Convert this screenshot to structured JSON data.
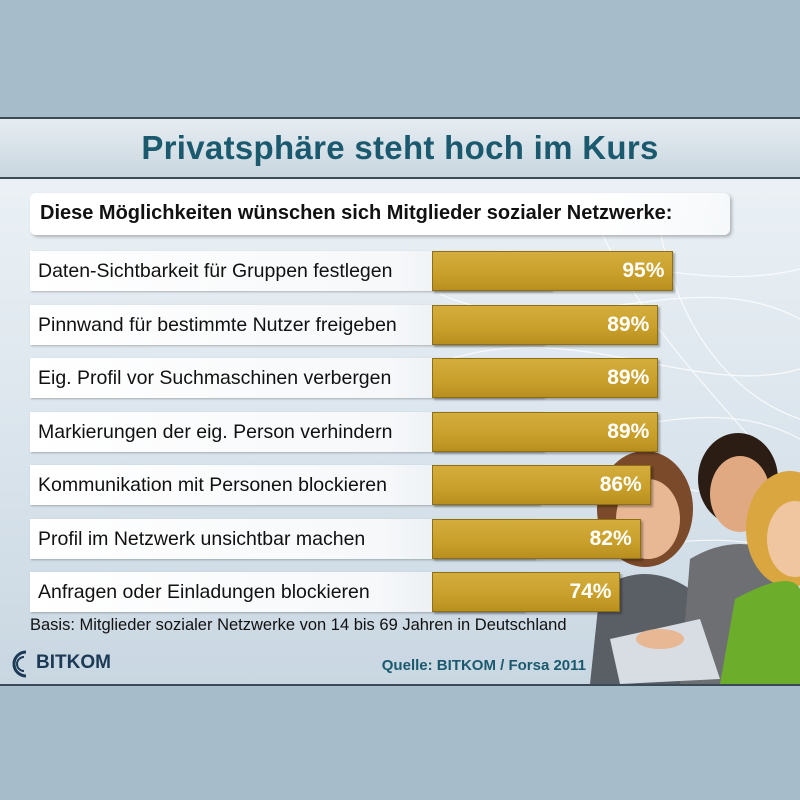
{
  "title": "Privatsphäre steht hoch im Kurs",
  "subtitle": "Diese Möglichkeiten wünschen sich Mitglieder sozialer Netzwerke:",
  "footnote": "Basis: Mitglieder sozialer Netzwerke von 14 bis 69 Jahren in Deutschland",
  "source": "Quelle: BITKOM / Forsa 2011",
  "logo_text": "BITKOM",
  "colors": {
    "bar": "#c99f2a",
    "title": "#1b5a6e",
    "frame": "#a6bccb"
  },
  "chart_data": {
    "type": "bar",
    "orientation": "horizontal",
    "categories": [
      "Daten-Sichtbarkeit für Gruppen festlegen",
      "Pinnwand für bestimmte Nutzer freigeben",
      "Eig. Profil vor Suchmaschinen verbergen",
      "Markierungen der eig. Person verhindern",
      "Kommunikation mit Personen blockieren",
      "Profil im Netzwerk unsichtbar machen",
      "Anfragen oder Einladungen blockieren"
    ],
    "values": [
      95,
      89,
      89,
      89,
      86,
      82,
      74
    ],
    "value_labels": [
      "95%",
      "89%",
      "89%",
      "89%",
      "86%",
      "82%",
      "74%"
    ],
    "unit": "%",
    "grid": false,
    "legend": "none"
  }
}
